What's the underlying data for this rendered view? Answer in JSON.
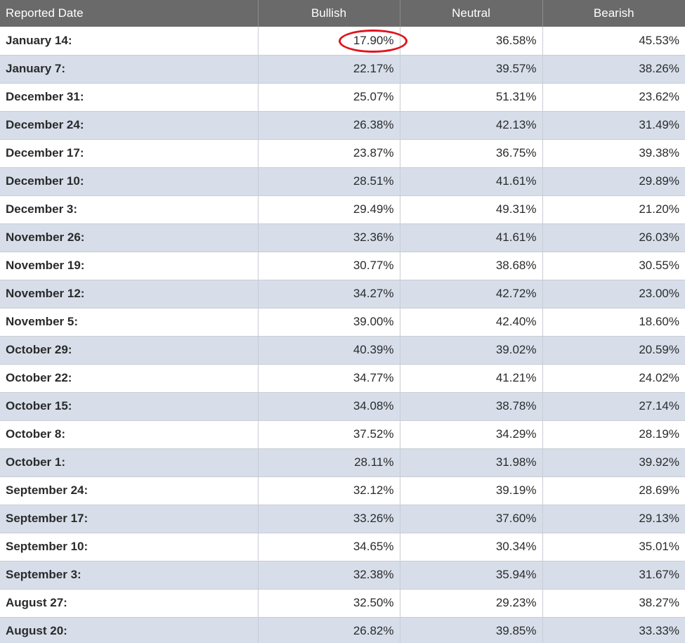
{
  "table": {
    "headers": [
      "Reported Date",
      "Bullish",
      "Neutral",
      "Bearish"
    ],
    "rows": [
      {
        "date": "January 14:",
        "bullish": "17.90%",
        "neutral": "36.58%",
        "bearish": "45.53%"
      },
      {
        "date": "January 7:",
        "bullish": "22.17%",
        "neutral": "39.57%",
        "bearish": "38.26%"
      },
      {
        "date": "December 31:",
        "bullish": "25.07%",
        "neutral": "51.31%",
        "bearish": "23.62%"
      },
      {
        "date": "December 24:",
        "bullish": "26.38%",
        "neutral": "42.13%",
        "bearish": "31.49%"
      },
      {
        "date": "December 17:",
        "bullish": "23.87%",
        "neutral": "36.75%",
        "bearish": "39.38%"
      },
      {
        "date": "December 10:",
        "bullish": "28.51%",
        "neutral": "41.61%",
        "bearish": "29.89%"
      },
      {
        "date": "December 3:",
        "bullish": "29.49%",
        "neutral": "49.31%",
        "bearish": "21.20%"
      },
      {
        "date": "November 26:",
        "bullish": "32.36%",
        "neutral": "41.61%",
        "bearish": "26.03%"
      },
      {
        "date": "November 19:",
        "bullish": "30.77%",
        "neutral": "38.68%",
        "bearish": "30.55%"
      },
      {
        "date": "November 12:",
        "bullish": "34.27%",
        "neutral": "42.72%",
        "bearish": "23.00%"
      },
      {
        "date": "November 5:",
        "bullish": "39.00%",
        "neutral": "42.40%",
        "bearish": "18.60%"
      },
      {
        "date": "October 29:",
        "bullish": "40.39%",
        "neutral": "39.02%",
        "bearish": "20.59%"
      },
      {
        "date": "October 22:",
        "bullish": "34.77%",
        "neutral": "41.21%",
        "bearish": "24.02%"
      },
      {
        "date": "October 15:",
        "bullish": "34.08%",
        "neutral": "38.78%",
        "bearish": "27.14%"
      },
      {
        "date": "October 8:",
        "bullish": "37.52%",
        "neutral": "34.29%",
        "bearish": "28.19%"
      },
      {
        "date": "October 1:",
        "bullish": "28.11%",
        "neutral": "31.98%",
        "bearish": "39.92%"
      },
      {
        "date": "September 24:",
        "bullish": "32.12%",
        "neutral": "39.19%",
        "bearish": "28.69%"
      },
      {
        "date": "September 17:",
        "bullish": "33.26%",
        "neutral": "37.60%",
        "bearish": "29.13%"
      },
      {
        "date": "September 10:",
        "bullish": "34.65%",
        "neutral": "30.34%",
        "bearish": "35.01%"
      },
      {
        "date": "September 3:",
        "bullish": "32.38%",
        "neutral": "35.94%",
        "bearish": "31.67%"
      },
      {
        "date": "August 27:",
        "bullish": "32.50%",
        "neutral": "29.23%",
        "bearish": "38.27%"
      },
      {
        "date": "August 20:",
        "bullish": "26.82%",
        "neutral": "39.85%",
        "bearish": "33.33%"
      }
    ]
  },
  "colors": {
    "header_bg": "#6a6a6a",
    "header_text": "#ffffff",
    "row_alt_bg": "#d7deea",
    "row_bg": "#ffffff",
    "circle_mark": "#e0141c"
  },
  "annotation": {
    "circled_row": 0,
    "circled_column": "bullish"
  }
}
